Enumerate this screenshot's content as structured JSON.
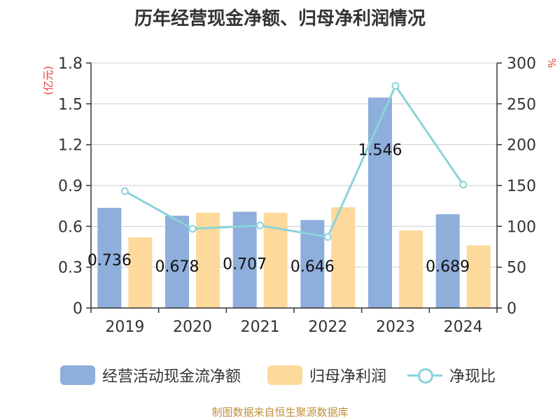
{
  "title": "历年经营现金净额、归母净利润情况",
  "left_unit": "(亿元)",
  "right_unit": "%",
  "source": "制图数据来自恒生聚源数据库",
  "legend": {
    "cash": "经营活动现金流净额",
    "profit": "归母净利润",
    "ratio": "净现比"
  },
  "colors": {
    "cash": "#8eaedb",
    "profit": "#fdd99b",
    "ratio": "#8ad4d9",
    "unit": "#e0413b"
  },
  "chart_data": {
    "type": "bar",
    "categories": [
      "2019",
      "2020",
      "2021",
      "2022",
      "2023",
      "2024"
    ],
    "series": [
      {
        "name": "经营活动现金流净额",
        "type": "bar",
        "axis": "left",
        "values": [
          0.736,
          0.678,
          0.707,
          0.646,
          1.546,
          0.689
        ],
        "labels": [
          "0.736",
          "0.678",
          "0.707",
          "0.646",
          "1.546",
          "0.689"
        ]
      },
      {
        "name": "归母净利润",
        "type": "bar",
        "axis": "left",
        "values": [
          0.52,
          0.7,
          0.7,
          0.74,
          0.57,
          0.46
        ]
      },
      {
        "name": "净现比",
        "type": "line",
        "axis": "right",
        "values": [
          143,
          97,
          101,
          87,
          272,
          151
        ]
      }
    ],
    "y_left": {
      "min": 0,
      "max": 1.8,
      "ticks": [
        "0",
        "0.3",
        "0.6",
        "0.9",
        "1.2",
        "1.5",
        "1.8"
      ]
    },
    "y_right": {
      "min": 0,
      "max": 300,
      "ticks": [
        "0",
        "50",
        "100",
        "150",
        "200",
        "250",
        "300"
      ]
    },
    "grid": true,
    "legend_position": "bottom"
  }
}
